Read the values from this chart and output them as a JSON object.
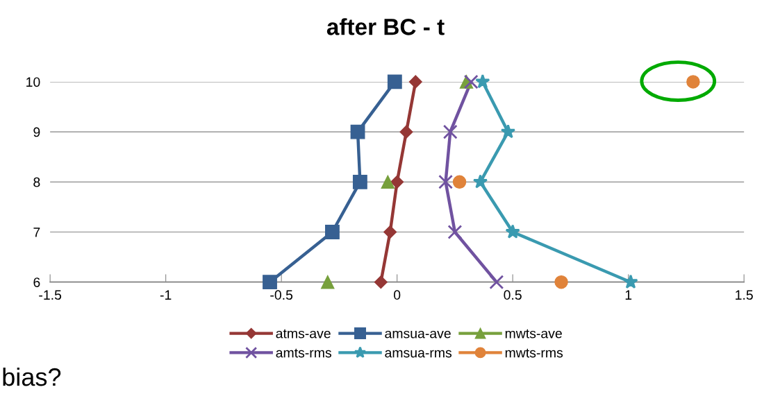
{
  "chart_data": {
    "type": "line",
    "title": "after BC - t",
    "annotations": [
      "bias?"
    ],
    "series": [
      {
        "name": "atms-ave",
        "color": "#953735",
        "marker": "diamond",
        "x": [
          -0.07,
          -0.03,
          0.0,
          0.04,
          0.08
        ],
        "values": [
          6,
          7,
          8,
          9,
          10
        ]
      },
      {
        "name": "amsua-ave",
        "color": "#376092",
        "marker": "square",
        "x": [
          -0.55,
          -0.28,
          -0.16,
          -0.17,
          -0.01
        ],
        "values": [
          6,
          7,
          8,
          9,
          10
        ]
      },
      {
        "name": "mwts-ave",
        "type": "scatter",
        "color": "#77a03c",
        "marker": "triangle",
        "x": [
          -0.3,
          -0.04,
          0.3
        ],
        "values": [
          6,
          8,
          10
        ]
      },
      {
        "name": "amts-rms",
        "color": "#7052a0",
        "marker": "cross",
        "x": [
          0.43,
          0.25,
          0.21,
          0.23,
          0.32
        ],
        "values": [
          6,
          7,
          8,
          9,
          10
        ]
      },
      {
        "name": "amsua-rms",
        "color": "#3a9ab0",
        "marker": "star",
        "x": [
          1.01,
          0.5,
          0.36,
          0.48,
          0.37
        ],
        "values": [
          6,
          7,
          8,
          9,
          10
        ]
      },
      {
        "name": "mwts-rms",
        "type": "scatter",
        "color": "#e0833a",
        "marker": "circle",
        "x": [
          0.71,
          0.27,
          1.28
        ],
        "values": [
          6,
          8,
          10
        ]
      }
    ],
    "xlim": [
      -1.5,
      1.5
    ],
    "xticks": [
      -1.5,
      -1,
      -0.5,
      0,
      0.5,
      1,
      1.5
    ],
    "ylim": [
      6,
      10
    ],
    "yticks": [
      6,
      7,
      8,
      9,
      10
    ],
    "grid": "y",
    "legend": "bottom"
  }
}
